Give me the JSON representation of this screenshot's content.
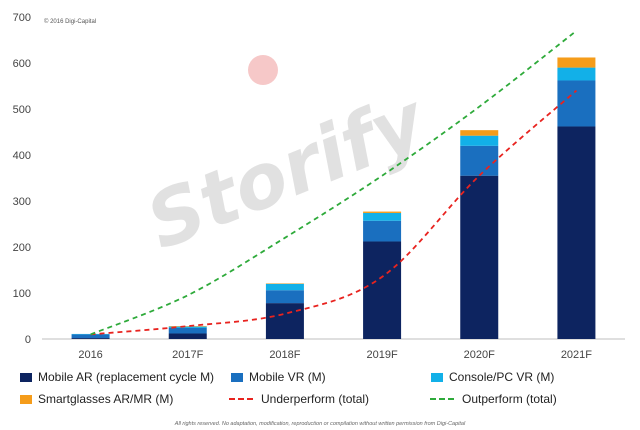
{
  "copyright": "© 2016 Digi-Capital",
  "watermark": "Storify",
  "footer": "All rights reserved. No adaptation, modification, reproduction or compilation without written permission from Digi-Capital",
  "chart_data": {
    "type": "bar",
    "stacked": true,
    "categories": [
      "2016",
      "2017F",
      "2018F",
      "2019F",
      "2020F",
      "2021F"
    ],
    "ylim": [
      0,
      700
    ],
    "yticks": [
      0,
      100,
      200,
      300,
      400,
      500,
      600,
      700
    ],
    "grid": false,
    "legend_position": "bottom",
    "series": [
      {
        "name": "Mobile AR (replacement cycle M)",
        "color": "#0d2460",
        "values": [
          2,
          12,
          78,
          212,
          355,
          462
        ]
      },
      {
        "name": "Mobile VR (M)",
        "color": "#1a6fbf",
        "values": [
          8,
          12,
          28,
          45,
          65,
          100
        ]
      },
      {
        "name": "Console/PC VR (M)",
        "color": "#12b0e8",
        "values": [
          1,
          3,
          14,
          17,
          22,
          28
        ]
      },
      {
        "name": "Smartglasses AR/MR (M)",
        "color": "#f59c1a",
        "values": [
          0,
          1,
          1,
          3,
          12,
          22
        ]
      }
    ],
    "lines": [
      {
        "name": "Underperform (total)",
        "color": "#e8231f",
        "values": [
          10,
          28,
          55,
          135,
          355,
          540
        ]
      },
      {
        "name": "Outperform (total)",
        "color": "#2eaa3a",
        "values": [
          10,
          95,
          220,
          355,
          505,
          670
        ]
      }
    ]
  },
  "legend": [
    {
      "label": "Mobile AR (replacement cycle M)",
      "kind": "box",
      "color": "#0d2460"
    },
    {
      "label": "Mobile VR (M)",
      "kind": "box",
      "color": "#1a6fbf"
    },
    {
      "label": "Console/PC VR (M)",
      "kind": "box",
      "color": "#12b0e8"
    },
    {
      "label": "Smartglasses AR/MR (M)",
      "kind": "box",
      "color": "#f59c1a"
    },
    {
      "label": "Underperform (total)",
      "kind": "line",
      "color": "#e8231f"
    },
    {
      "label": "Outperform (total)",
      "kind": "line",
      "color": "#2eaa3a"
    }
  ]
}
